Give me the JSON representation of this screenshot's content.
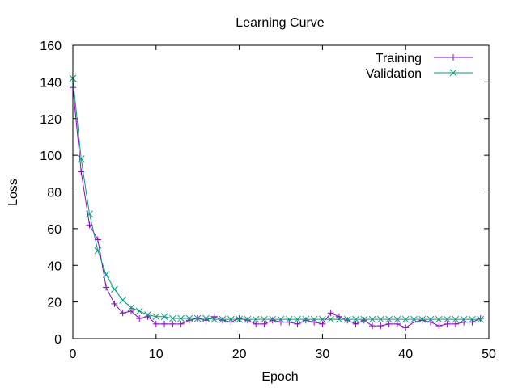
{
  "chart_data": {
    "type": "line",
    "title": "Learning Curve",
    "xlabel": "Epoch",
    "ylabel": "Loss",
    "xlim": [
      0,
      50
    ],
    "ylim": [
      0,
      160
    ],
    "x_ticks": [
      0,
      10,
      20,
      30,
      40,
      50
    ],
    "y_ticks": [
      0,
      20,
      40,
      60,
      80,
      100,
      120,
      140,
      160
    ],
    "grid": false,
    "legend_position": "top-right",
    "x": [
      0,
      1,
      2,
      3,
      4,
      5,
      6,
      7,
      8,
      9,
      10,
      11,
      12,
      13,
      14,
      15,
      16,
      17,
      18,
      19,
      20,
      21,
      22,
      23,
      24,
      25,
      26,
      27,
      28,
      29,
      30,
      31,
      32,
      33,
      34,
      35,
      36,
      37,
      38,
      39,
      40,
      41,
      42,
      43,
      44,
      45,
      46,
      47,
      48,
      49
    ],
    "series": [
      {
        "name": "Training",
        "color": "#9400d3",
        "marker": "plus",
        "values": [
          137,
          91,
          62,
          54,
          28,
          19,
          14,
          15,
          11,
          12,
          8,
          8,
          8,
          8,
          10,
          11,
          10,
          12,
          10,
          9,
          11,
          10,
          8,
          8,
          10,
          9,
          9,
          8,
          10,
          9,
          8,
          14,
          12,
          10,
          8,
          10,
          7,
          7,
          8,
          8,
          6,
          9,
          10,
          9,
          7,
          8,
          8,
          9,
          9,
          11
        ]
      },
      {
        "name": "Validation",
        "color": "#009e73",
        "marker": "cross",
        "values": [
          142,
          98,
          68,
          48,
          35,
          27,
          21,
          17,
          15,
          13,
          12,
          12,
          11,
          11,
          11,
          11,
          11,
          10.5,
          10.5,
          10.5,
          10.5,
          10.5,
          10.5,
          10.5,
          10.5,
          10.5,
          10.5,
          10.5,
          10.5,
          10.5,
          10.5,
          10.5,
          10.5,
          10.5,
          10.5,
          10.5,
          10.5,
          10.5,
          10.5,
          10.5,
          10.5,
          10.5,
          10.5,
          10.5,
          10.5,
          10.5,
          10.5,
          10.5,
          10.5,
          10.5
        ]
      }
    ]
  }
}
